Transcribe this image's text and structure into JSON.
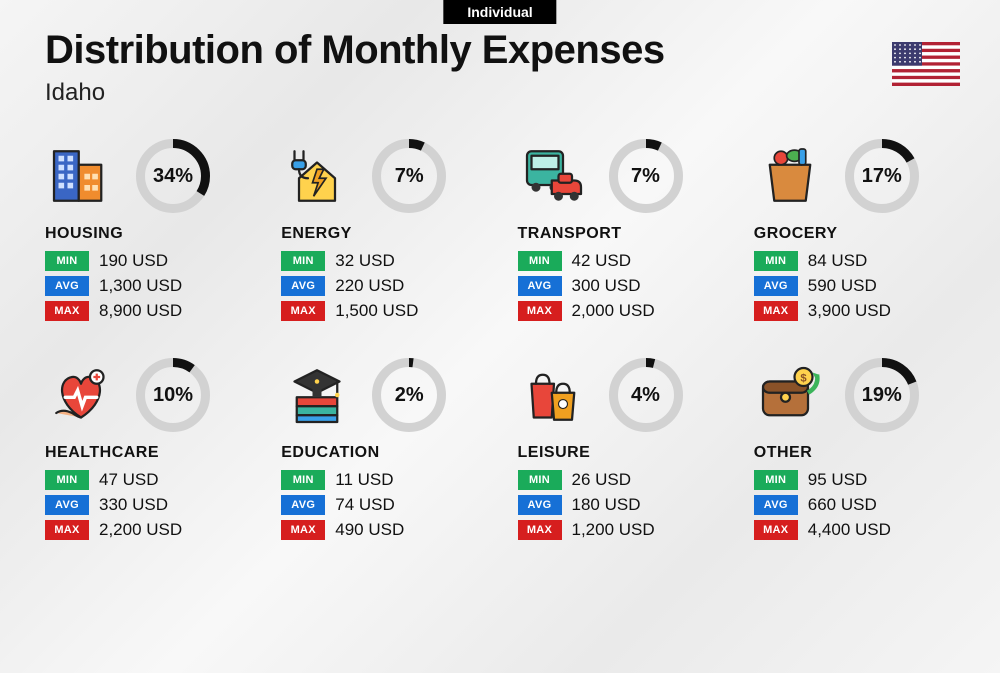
{
  "badge": "Individual",
  "title": "Distribution of Monthly Expenses",
  "subtitle": "Idaho",
  "currency": "USD",
  "colors": {
    "min_tag": "#1aab5a",
    "avg_tag": "#1670d6",
    "max_tag": "#d61e1e",
    "ring_track": "#d2d2d2",
    "ring_fill": "#111111",
    "text": "#111111",
    "badge_bg": "#000000"
  },
  "labels": {
    "min": "MIN",
    "avg": "AVG",
    "max": "MAX"
  },
  "donut": {
    "size": 76,
    "stroke": 9,
    "start_angle_deg": -90
  },
  "flag": {
    "bg": "#ffffff",
    "stripe": "#b22234",
    "canton": "#3c3b6e",
    "star": "#ffffff"
  },
  "categories": [
    {
      "key": "housing",
      "name": "HOUSING",
      "percent": 34,
      "min": "190 USD",
      "avg": "1,300 USD",
      "max": "8,900 USD"
    },
    {
      "key": "energy",
      "name": "ENERGY",
      "percent": 7,
      "min": "32 USD",
      "avg": "220 USD",
      "max": "1,500 USD"
    },
    {
      "key": "transport",
      "name": "TRANSPORT",
      "percent": 7,
      "min": "42 USD",
      "avg": "300 USD",
      "max": "2,000 USD"
    },
    {
      "key": "grocery",
      "name": "GROCERY",
      "percent": 17,
      "min": "84 USD",
      "avg": "590 USD",
      "max": "3,900 USD"
    },
    {
      "key": "healthcare",
      "name": "HEALTHCARE",
      "percent": 10,
      "min": "47 USD",
      "avg": "330 USD",
      "max": "2,200 USD"
    },
    {
      "key": "education",
      "name": "EDUCATION",
      "percent": 2,
      "min": "11 USD",
      "avg": "74 USD",
      "max": "490 USD"
    },
    {
      "key": "leisure",
      "name": "LEISURE",
      "percent": 4,
      "min": "26 USD",
      "avg": "180 USD",
      "max": "1,200 USD"
    },
    {
      "key": "other",
      "name": "OTHER",
      "percent": 19,
      "min": "95 USD",
      "avg": "660 USD",
      "max": "4,400 USD"
    }
  ]
}
